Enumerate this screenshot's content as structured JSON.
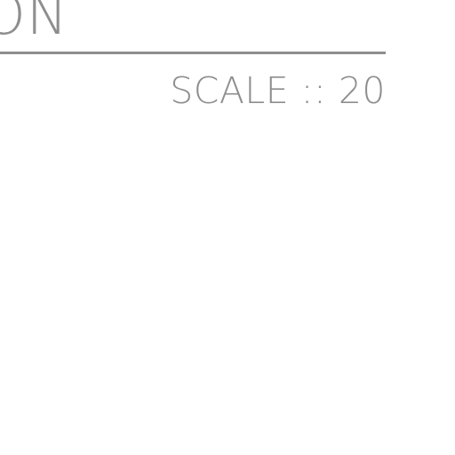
{
  "title": {
    "text": "ON"
  },
  "scale": {
    "text": "SCALE :: 20"
  },
  "colors": {
    "ink": "#8e8e8e",
    "background": "#ffffff"
  }
}
